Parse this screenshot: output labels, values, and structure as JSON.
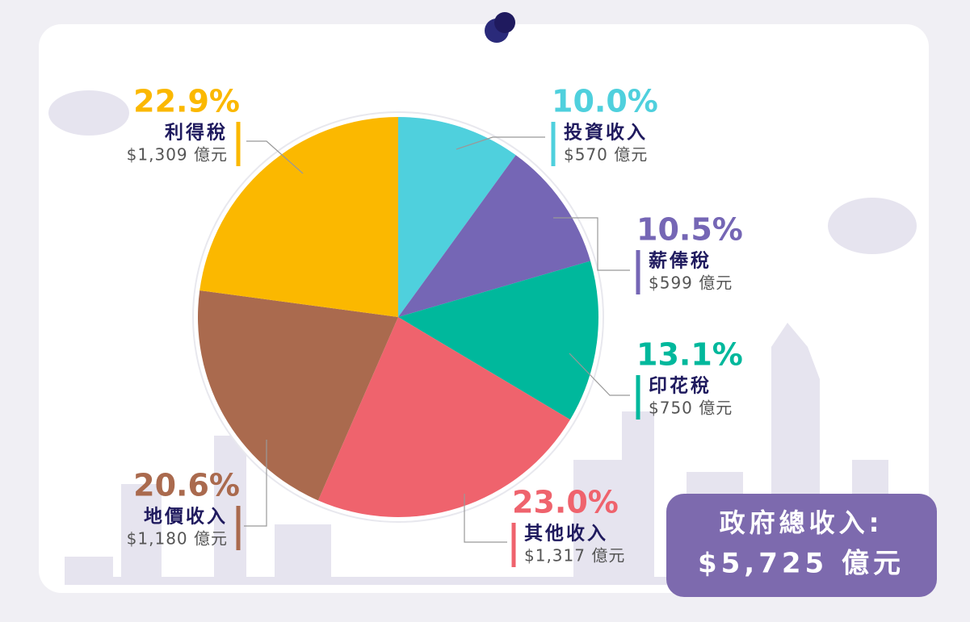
{
  "chart_data": {
    "type": "pie",
    "categories": [
      "投資收入",
      "薪俸稅",
      "印花稅",
      "其他收入",
      "地價收入",
      "利得稅"
    ],
    "values": [
      10.0,
      10.5,
      13.1,
      23.0,
      20.6,
      22.9
    ],
    "value_labels": [
      "10.0%",
      "10.5%",
      "13.1%",
      "23.0%",
      "20.6%",
      "22.9%"
    ],
    "amount_labels": [
      "$570 億元",
      "$599 億元",
      "$750 億元",
      "$1,317 億元",
      "$1,180 億元",
      "$1,309 億元"
    ],
    "colors": [
      "#4fd0dd",
      "#7566b5",
      "#00b89c",
      "#ef636d",
      "#aa6a4e",
      "#fbb800"
    ],
    "total_label": "政府總收入:",
    "total": "$5,725 億元"
  }
}
